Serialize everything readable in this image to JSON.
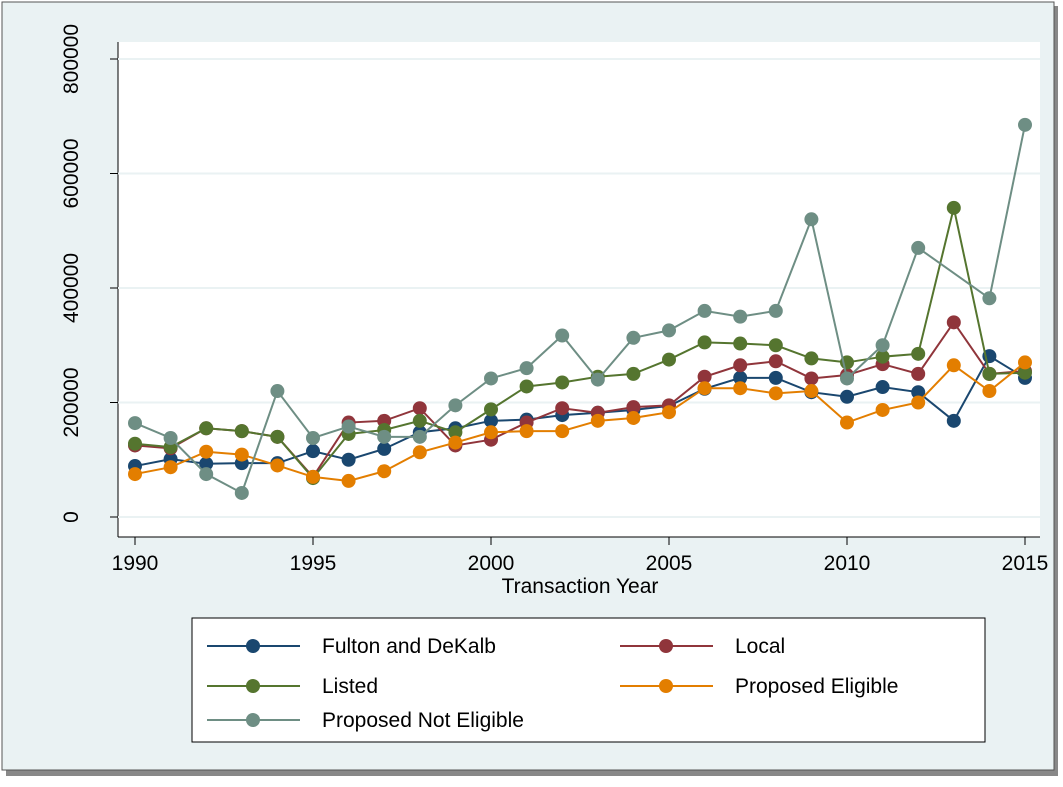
{
  "chart_data": {
    "type": "line",
    "x_label": "Transaction Year",
    "x": [
      1990,
      1991,
      1992,
      1993,
      1994,
      1995,
      1996,
      1997,
      1998,
      1999,
      2000,
      2001,
      2002,
      2003,
      2004,
      2005,
      2006,
      2007,
      2008,
      2009,
      2010,
      2011,
      2012,
      2013,
      2014,
      2015
    ],
    "xlim": [
      1990,
      2015
    ],
    "xticks": [
      1990,
      1995,
      2000,
      2005,
      2010,
      2015
    ],
    "ylim": [
      0,
      800000
    ],
    "yticks": [
      0,
      200000,
      400000,
      600000,
      800000
    ],
    "grid": true,
    "legend": "bottom",
    "series": [
      {
        "name": "Fulton and DeKalb",
        "color": "#1a476f",
        "values": [
          89000,
          101000,
          93000,
          94000,
          94000,
          115000,
          100000,
          119000,
          148000,
          155000,
          168000,
          170000,
          178000,
          182000,
          187000,
          194000,
          224000,
          243000,
          243000,
          218000,
          210000,
          227000,
          218000,
          168000,
          281000,
          243000
        ]
      },
      {
        "name": "Local",
        "color": "#90353b",
        "values": [
          125000,
          120000,
          155000,
          150000,
          140000,
          70000,
          165000,
          168000,
          190000,
          125000,
          135000,
          165000,
          190000,
          182000,
          192000,
          195000,
          245000,
          265000,
          272000,
          242000,
          248000,
          267000,
          250000,
          340000,
          250000,
          255000
        ]
      },
      {
        "name": "Listed",
        "color": "#55752f",
        "values": [
          128000,
          122000,
          155000,
          150000,
          140000,
          68000,
          145000,
          152000,
          168000,
          148000,
          188000,
          228000,
          235000,
          245000,
          250000,
          275000,
          305000,
          303000,
          300000,
          277000,
          270000,
          280000,
          285000,
          540000,
          250000,
          252000
        ]
      },
      {
        "name": "Proposed Eligible",
        "color": "#e37e00",
        "values": [
          75000,
          87000,
          114000,
          109000,
          90000,
          70000,
          63000,
          80000,
          113000,
          130000,
          148000,
          150000,
          150000,
          168000,
          173000,
          183000,
          225000,
          225000,
          216000,
          220000,
          165000,
          187000,
          200000,
          265000,
          220000,
          270000
        ]
      },
      {
        "name": "Proposed Not Eligible",
        "color": "#6e8e84",
        "x": [
          1990,
          1991,
          1992,
          1993,
          1994,
          1995,
          1996,
          1997,
          1998,
          1999,
          2000,
          2001,
          2002,
          2003,
          2004,
          2005,
          2006,
          2007,
          2008,
          2009,
          2010,
          2011,
          2012,
          2014,
          2015
        ],
        "values": [
          164000,
          138000,
          75000,
          42000,
          220000,
          138000,
          158000,
          140000,
          140000,
          195000,
          242000,
          260000,
          317000,
          240000,
          313000,
          326000,
          360000,
          350000,
          360000,
          520000,
          242000,
          300000,
          470000,
          382000,
          685000
        ]
      }
    ]
  }
}
